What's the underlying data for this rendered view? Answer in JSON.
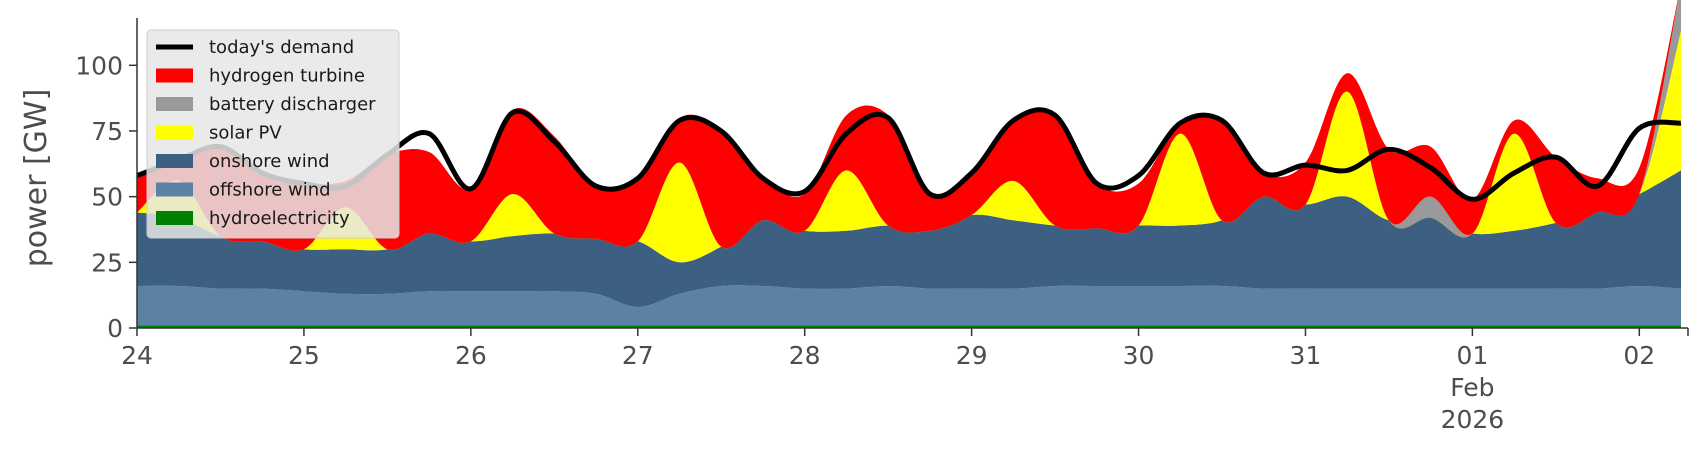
{
  "chart_data": {
    "type": "area",
    "ylabel": "power [GW]",
    "ylim": [
      0,
      118
    ],
    "xlim": [
      0,
      223
    ],
    "yticks": [
      0,
      25,
      50,
      75,
      100
    ],
    "x_ticks": [
      {
        "t": 0,
        "label": "24"
      },
      {
        "t": 24,
        "label": "25"
      },
      {
        "t": 48,
        "label": "26"
      },
      {
        "t": 72,
        "label": "27"
      },
      {
        "t": 96,
        "label": "28"
      },
      {
        "t": 120,
        "label": "29"
      },
      {
        "t": 144,
        "label": "30"
      },
      {
        "t": 168,
        "label": "31"
      },
      {
        "t": 192,
        "label": "01",
        "sub": [
          "Feb",
          "2026"
        ]
      },
      {
        "t": 216,
        "label": "02"
      }
    ],
    "grid": false,
    "legend_position": "upper-left",
    "x_unit": "hours from 24 Jan 2026 00:00",
    "x": [
      0,
      6,
      12,
      18,
      24,
      30,
      36,
      42,
      48,
      54,
      60,
      66,
      72,
      78,
      84,
      90,
      96,
      102,
      108,
      114,
      120,
      126,
      132,
      138,
      144,
      150,
      156,
      162,
      168,
      174,
      180,
      186,
      192,
      198,
      204,
      210,
      216,
      222
    ],
    "series": [
      {
        "name": "hydroelectricity",
        "color": "#008000",
        "values": [
          1,
          1,
          1,
          1,
          1,
          1,
          1,
          1,
          1,
          1,
          1,
          1,
          1,
          1,
          1,
          1,
          1,
          1,
          1,
          1,
          1,
          1,
          1,
          1,
          1,
          1,
          1,
          1,
          1,
          1,
          1,
          1,
          1,
          1,
          1,
          1,
          1,
          1
        ]
      },
      {
        "name": "offshore wind",
        "color": "#5b81a5",
        "values": [
          15,
          15,
          14,
          14,
          13,
          12,
          12,
          13,
          13,
          13,
          13,
          12,
          7,
          12,
          15,
          15,
          14,
          14,
          15,
          14,
          14,
          14,
          15,
          15,
          15,
          15,
          15,
          14,
          14,
          14,
          14,
          14,
          14,
          14,
          14,
          14,
          15,
          14
        ]
      },
      {
        "name": "onshore wind",
        "color": "#3c5f82",
        "values": [
          28,
          26,
          20,
          18,
          16,
          17,
          17,
          22,
          19,
          21,
          22,
          21,
          25,
          12,
          15,
          25,
          22,
          22,
          23,
          22,
          28,
          26,
          23,
          22,
          23,
          23,
          25,
          35,
          32,
          35,
          26,
          27,
          21,
          22,
          25,
          29,
          35,
          45
        ]
      },
      {
        "name": "solar PV",
        "color": "#ffff00",
        "values": [
          0,
          14,
          0,
          0,
          0,
          16,
          0,
          0,
          0,
          16,
          0,
          0,
          0,
          38,
          0,
          0,
          0,
          23,
          0,
          0,
          0,
          15,
          0,
          0,
          0,
          35,
          0,
          0,
          0,
          40,
          0,
          0,
          0,
          37,
          0,
          0,
          0,
          53
        ]
      },
      {
        "name": "battery discharger",
        "color": "#999999",
        "values": [
          0,
          0,
          0,
          0,
          0,
          0,
          0,
          0,
          0,
          0,
          0,
          0,
          0,
          0,
          0,
          0,
          0,
          0,
          0,
          0,
          0,
          0,
          0,
          0,
          0,
          0,
          0,
          0,
          0,
          0,
          0,
          8,
          0,
          0,
          0,
          0,
          0,
          18
        ]
      },
      {
        "name": "hydrogen turbine",
        "color": "#ff0000",
        "values": [
          14,
          8,
          34,
          26,
          25,
          10,
          36,
          31,
          20,
          32,
          37,
          20,
          24,
          17,
          45,
          17,
          14,
          21,
          42,
          15,
          16,
          24,
          42,
          17,
          16,
          4,
          38,
          9,
          16,
          7,
          27,
          19,
          13,
          5,
          25,
          13,
          10,
          0
        ]
      }
    ],
    "line_series": {
      "name": "today's demand",
      "color": "#000000",
      "values": [
        58,
        64,
        69,
        59,
        55,
        54,
        66,
        74,
        53,
        82,
        71,
        54,
        57,
        79,
        75,
        57,
        52,
        74,
        80,
        51,
        59,
        79,
        81,
        55,
        58,
        78,
        79,
        59,
        62,
        60,
        68,
        61,
        49,
        59,
        65,
        54,
        76,
        78
      ]
    }
  },
  "legend": [
    {
      "label": "today's demand",
      "kind": "line",
      "color": "#000000"
    },
    {
      "label": "hydrogen turbine",
      "kind": "patch",
      "color": "#ff0000"
    },
    {
      "label": "battery discharger",
      "kind": "patch",
      "color": "#999999"
    },
    {
      "label": "solar PV",
      "kind": "patch",
      "color": "#ffff00"
    },
    {
      "label": "onshore wind",
      "kind": "patch",
      "color": "#3c5f82"
    },
    {
      "label": "offshore wind",
      "kind": "patch",
      "color": "#5b81a5"
    },
    {
      "label": "hydroelectricity",
      "kind": "patch",
      "color": "#008000"
    }
  ]
}
